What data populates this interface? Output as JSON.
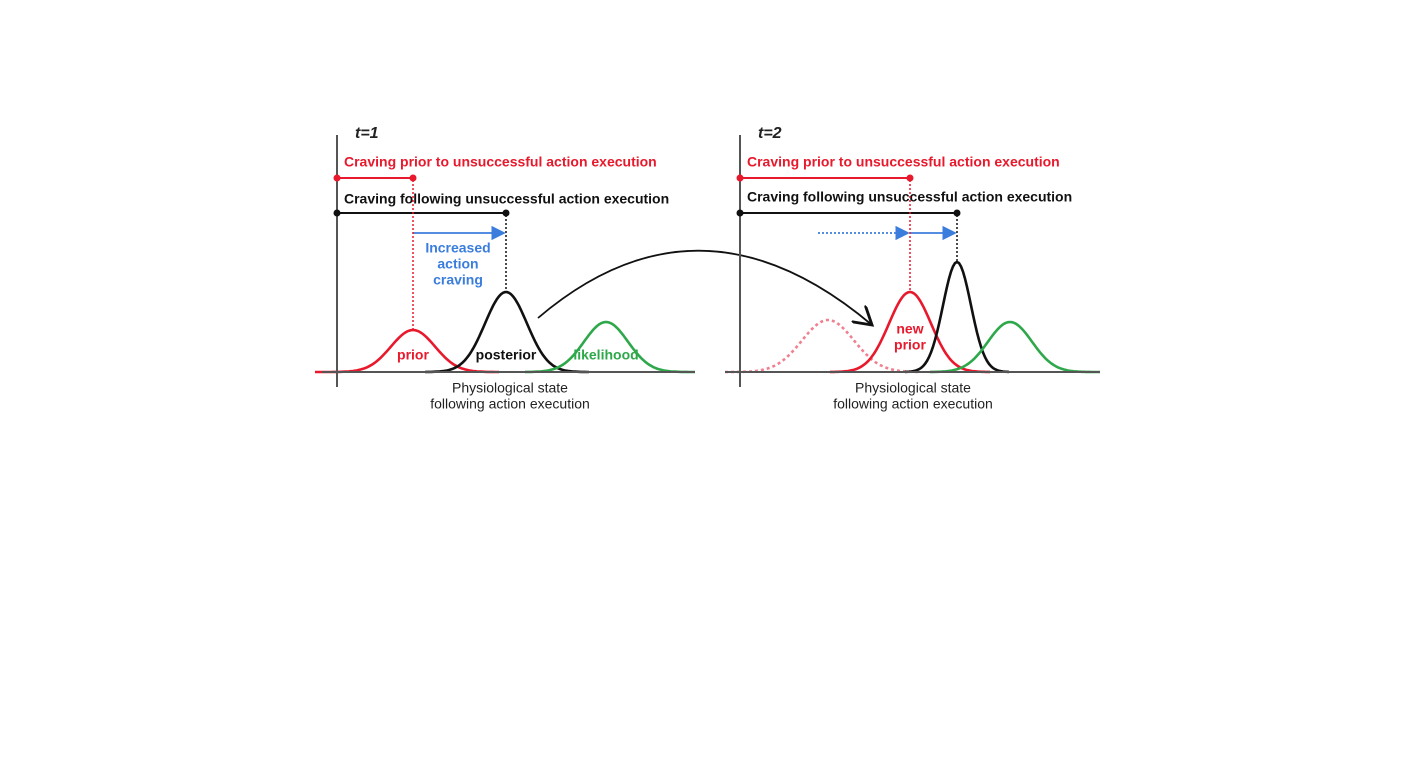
{
  "panels": [
    {
      "time_label": "t=1",
      "prior_text": "Craving prior to unsuccessful action execution",
      "posterior_text": "Craving following unsuccessful action execution",
      "annotation": [
        "Increased",
        "action",
        "craving"
      ],
      "curve_labels": {
        "prior": "prior",
        "posterior": "posterior",
        "likelihood": "likelihood"
      },
      "x_axis_label": [
        "Physiological state",
        "following action execution"
      ]
    },
    {
      "time_label": "t=2",
      "prior_text": "Craving prior to unsuccessful action execution",
      "posterior_text": "Craving following unsuccessful action execution",
      "curve_labels": {
        "new_prior": [
          "new",
          "prior"
        ]
      },
      "x_axis_label": [
        "Physiological state",
        "following action execution"
      ]
    }
  ]
}
